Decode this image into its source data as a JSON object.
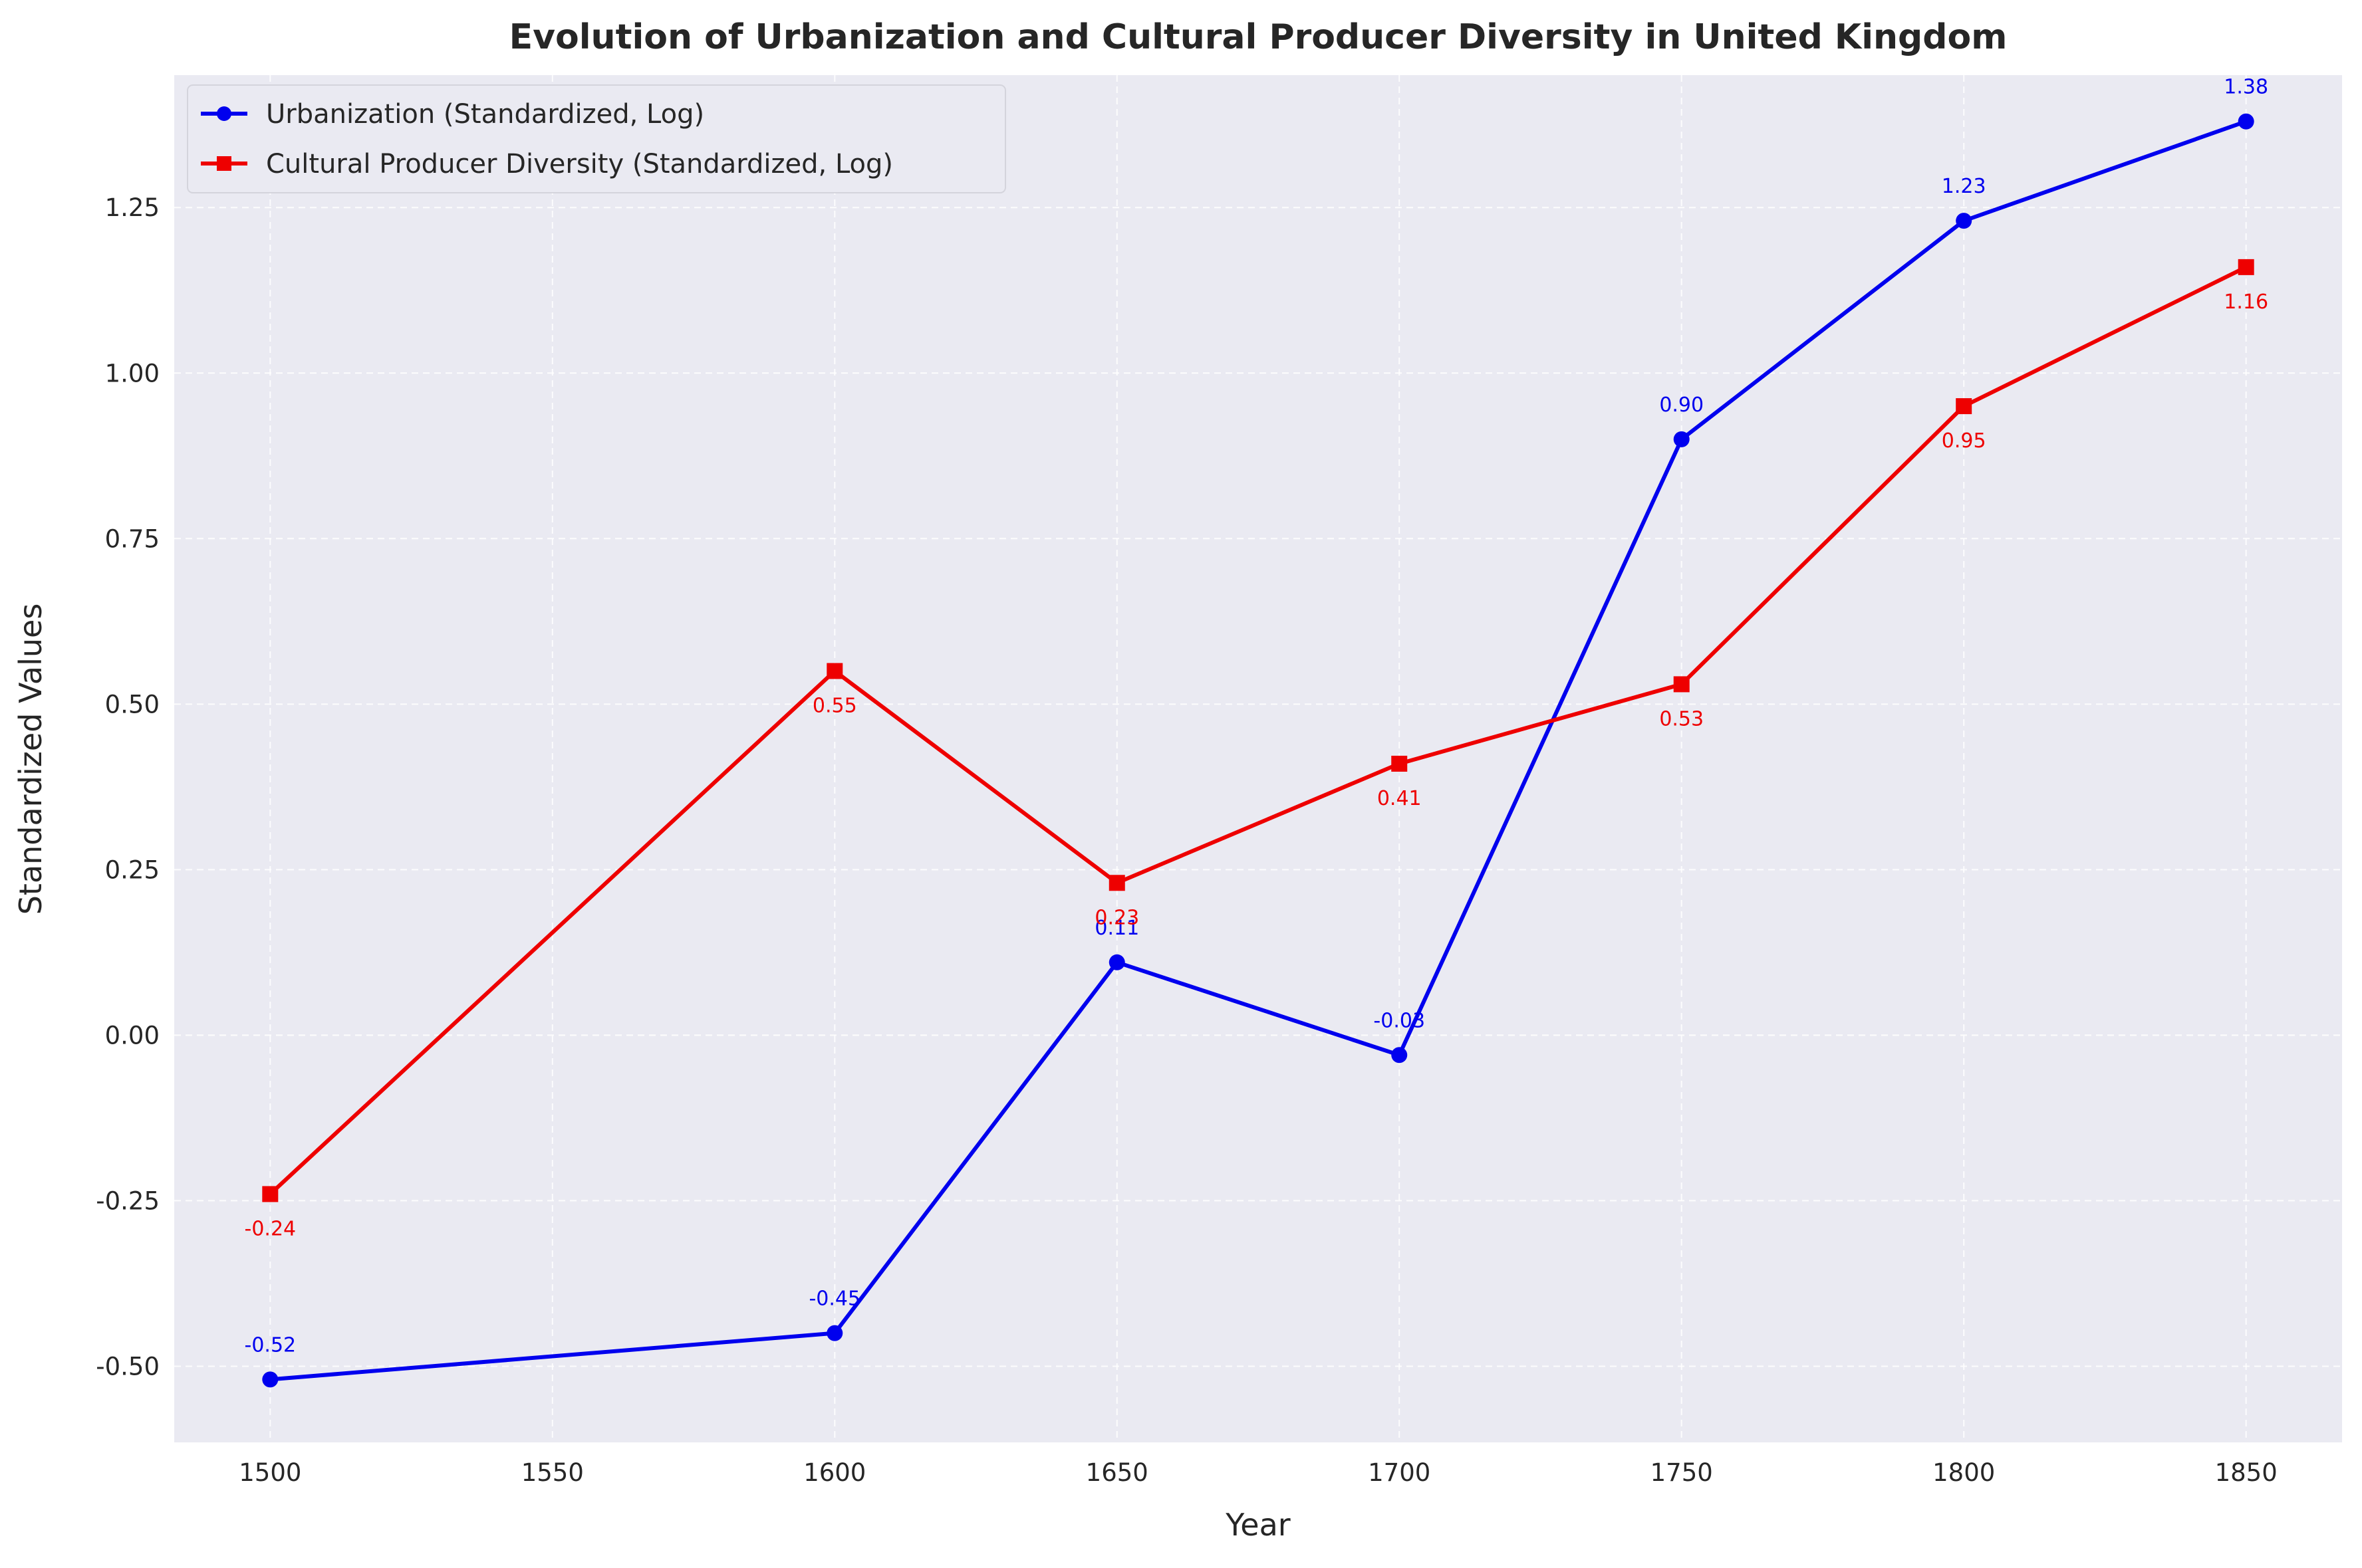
{
  "chart_data": {
    "type": "line",
    "title": "Evolution of Urbanization and Cultural Producer Diversity in United Kingdom",
    "xlabel": "Year",
    "ylabel": "Standardized Values",
    "x": [
      1500,
      1600,
      1650,
      1700,
      1750,
      1800,
      1850
    ],
    "x_ticks": [
      "1500",
      "1550",
      "1600",
      "1650",
      "1700",
      "1750",
      "1800",
      "1850"
    ],
    "y_ticks": [
      "-0.50",
      "-0.25",
      "0.00",
      "0.25",
      "0.50",
      "0.75",
      "1.00",
      "1.25"
    ],
    "ylim": [
      -0.615,
      1.45
    ],
    "grid": true,
    "legend_position": "top-left",
    "series": [
      {
        "name": "Urbanization (Standardized, Log)",
        "color": "#0000ee",
        "marker": "circle",
        "values": [
          -0.52,
          -0.45,
          0.11,
          -0.03,
          0.9,
          1.23,
          1.38
        ],
        "labels": [
          "-0.52",
          "-0.45",
          "0.11",
          "-0.03",
          "0.90",
          "1.23",
          "1.38"
        ]
      },
      {
        "name": "Cultural Producer Diversity (Standardized, Log)",
        "color": "#ee0000",
        "marker": "square",
        "values": [
          -0.24,
          0.55,
          0.23,
          0.41,
          0.53,
          0.95,
          1.16
        ],
        "labels": [
          "-0.24",
          "0.55",
          "0.23",
          "0.41",
          "0.53",
          "0.95",
          "1.16"
        ]
      }
    ]
  }
}
